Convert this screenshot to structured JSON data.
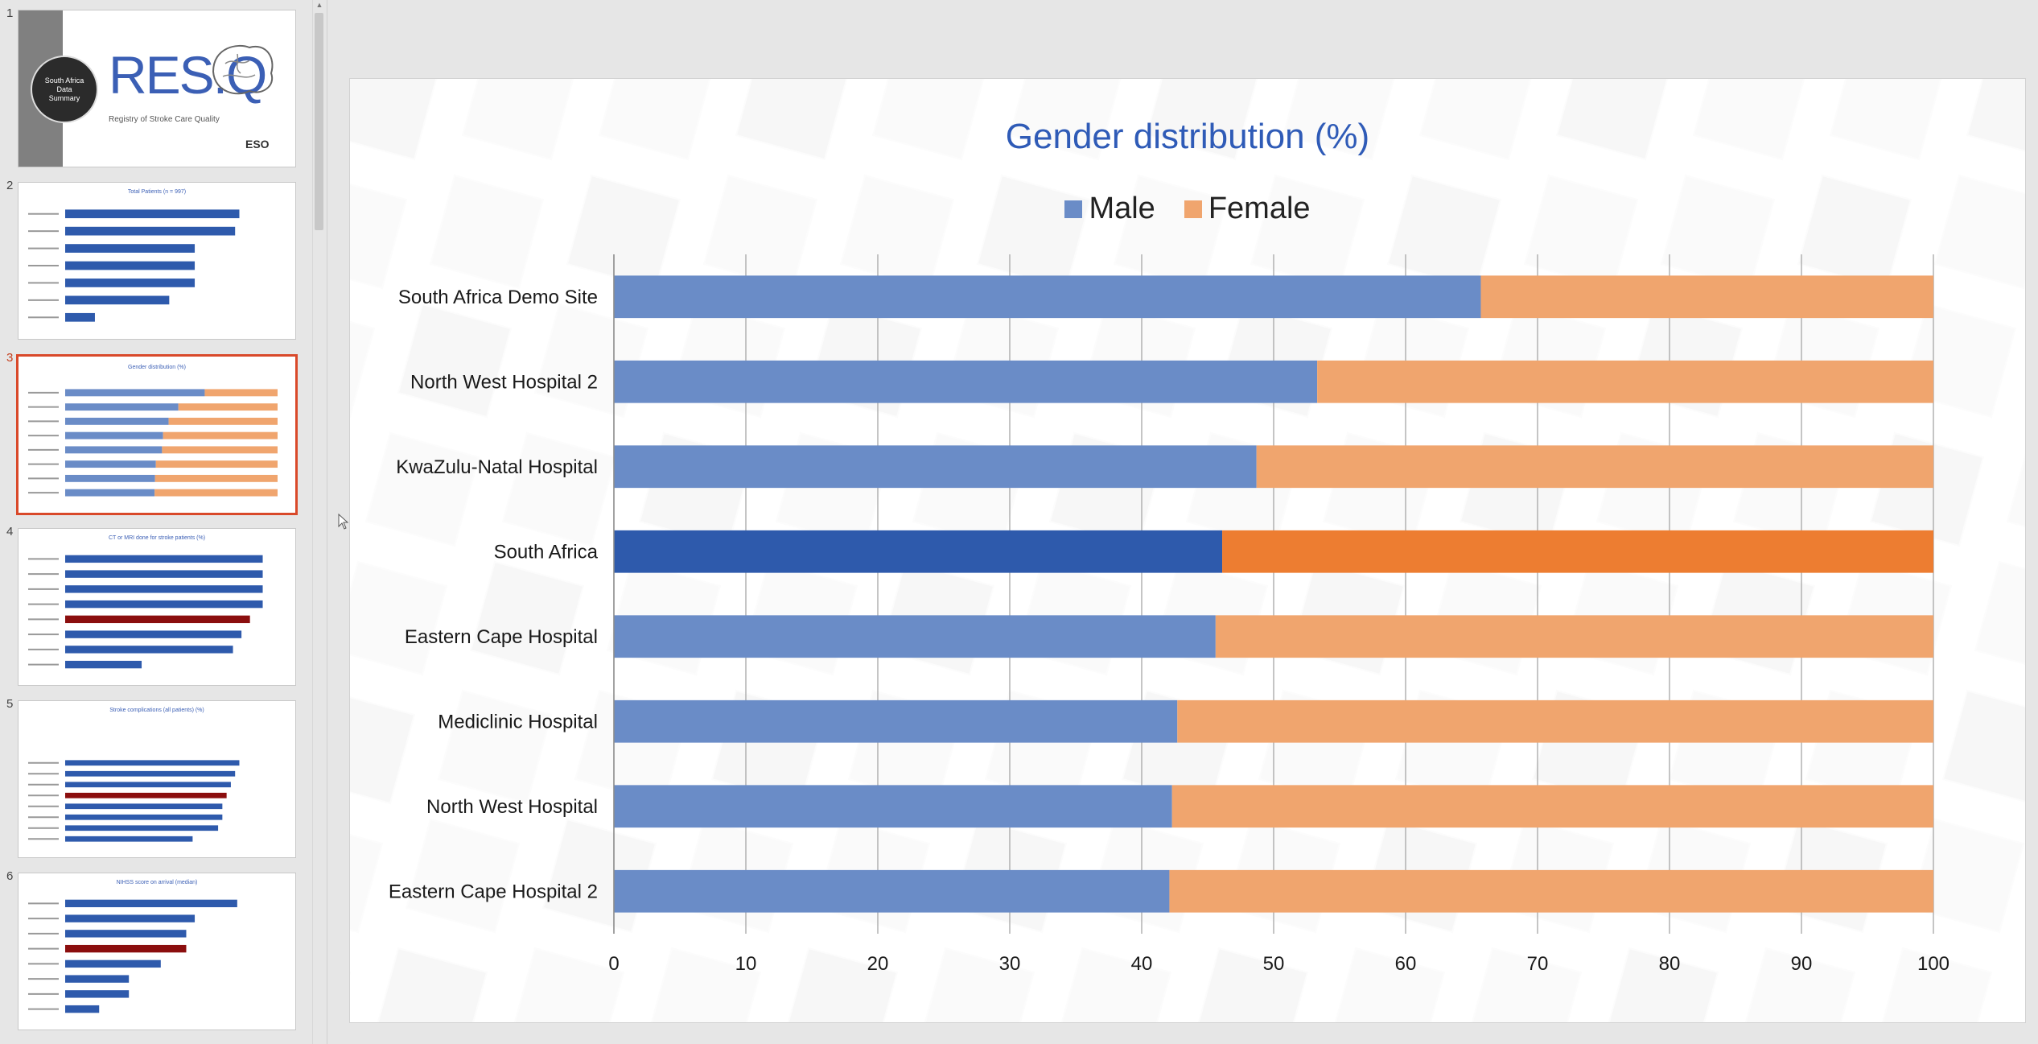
{
  "thumbnails": [
    {
      "number": "1",
      "badge": [
        "South Africa",
        "Data",
        "Summary"
      ],
      "logo_text": "RES.Q",
      "logo_sub": "Registry of Stroke Care Quality",
      "brand": "ESO"
    },
    {
      "number": "2",
      "title": "Total Patients (n = 997)"
    },
    {
      "number": "3",
      "title": "Gender distribution (%)",
      "active": true
    },
    {
      "number": "4",
      "title": "CT or MRI done for stroke patients (%)"
    },
    {
      "number": "5",
      "title": "Stroke complications (all patients) (%)"
    },
    {
      "number": "6",
      "title": "NIHSS score on arrival (median)"
    }
  ],
  "colors": {
    "male": "#6a8cc7",
    "female": "#f0a56e",
    "male_highlight": "#2e5aac",
    "female_highlight": "#ed7d31",
    "title": "#2f5bb7",
    "active_border": "#d9492a",
    "thumb_bar": "#2e5aac",
    "thumb_highlight": "#8b0e0e"
  },
  "chart_data": {
    "type": "bar",
    "orientation": "horizontal",
    "stacked": true,
    "title": "Gender distribution (%)",
    "categories": [
      "South Africa Demo Site",
      "North West Hospital 2",
      "KwaZulu-Natal Hospital",
      "South Africa",
      "Eastern Cape Hospital",
      "Mediclinic Hospital",
      "North West Hospital",
      "Eastern Cape Hospital 2"
    ],
    "highlight_category": "South Africa",
    "series": [
      {
        "name": "Male",
        "values": [
          65.7,
          53.3,
          48.7,
          46.1,
          45.6,
          42.7,
          42.3,
          42.1
        ]
      },
      {
        "name": "Female",
        "values": [
          34.3,
          46.7,
          51.3,
          53.9,
          54.4,
          57.3,
          57.7,
          57.9
        ]
      }
    ],
    "xlim": [
      0,
      100
    ],
    "xticks": [
      0,
      10,
      20,
      30,
      40,
      50,
      60,
      70,
      80,
      90,
      100
    ],
    "grid": true,
    "legend_position": "top"
  }
}
